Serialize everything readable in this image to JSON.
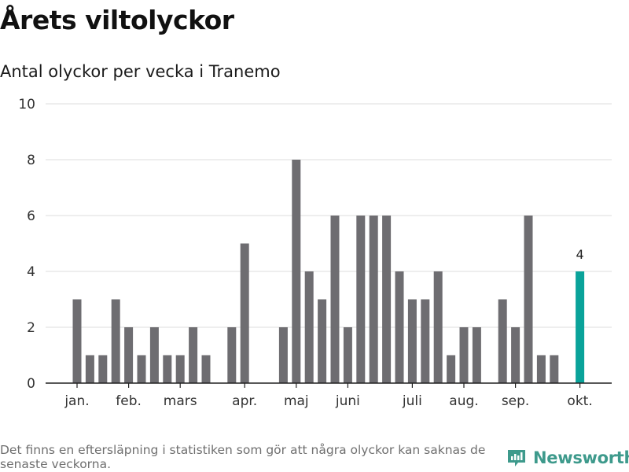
{
  "header": {
    "title": "Årets viltolyckor",
    "subtitle": "Antal olyckor per vecka i Tranemo"
  },
  "footer": {
    "note": "Det finns en eftersläpning i statistiken som gör att några olyckor kan saknas de senaste veckorna.",
    "brand": "Newsworthy"
  },
  "colors": {
    "bar": "#6e6d71",
    "highlight": "#0aa39a",
    "grid": "#dddddd",
    "brand": "#3e9a8c"
  },
  "chart_data": {
    "type": "bar",
    "title": "Antal olyckor per vecka i Tranemo",
    "xlabel": "",
    "ylabel": "",
    "ylim": [
      0,
      10
    ],
    "yticks": [
      0,
      2,
      4,
      6,
      8,
      10
    ],
    "grid": true,
    "weeks": [
      1,
      2,
      3,
      4,
      5,
      6,
      7,
      8,
      9,
      10,
      11,
      12,
      13,
      14,
      15,
      16,
      17,
      18,
      19,
      20,
      21,
      22,
      23,
      24,
      25,
      26,
      27,
      28,
      29,
      30,
      31,
      32,
      33,
      34,
      35,
      36,
      37,
      38,
      39,
      40,
      41
    ],
    "values": [
      3,
      1,
      1,
      3,
      2,
      1,
      2,
      1,
      1,
      2,
      1,
      0,
      2,
      5,
      0,
      0,
      2,
      8,
      4,
      3,
      6,
      2,
      6,
      6,
      6,
      4,
      3,
      3,
      4,
      1,
      2,
      2,
      0,
      3,
      2,
      6,
      1,
      1,
      0,
      4,
      0
    ],
    "highlight_index": 39,
    "highlight_label": "4",
    "month_labels": [
      {
        "label": "jan.",
        "week": 1
      },
      {
        "label": "feb.",
        "week": 5
      },
      {
        "label": "mars",
        "week": 9
      },
      {
        "label": "apr.",
        "week": 14
      },
      {
        "label": "maj",
        "week": 18
      },
      {
        "label": "juni",
        "week": 22
      },
      {
        "label": "juli",
        "week": 27
      },
      {
        "label": "aug.",
        "week": 31
      },
      {
        "label": "sep.",
        "week": 35
      },
      {
        "label": "okt.",
        "week": 40
      }
    ]
  }
}
